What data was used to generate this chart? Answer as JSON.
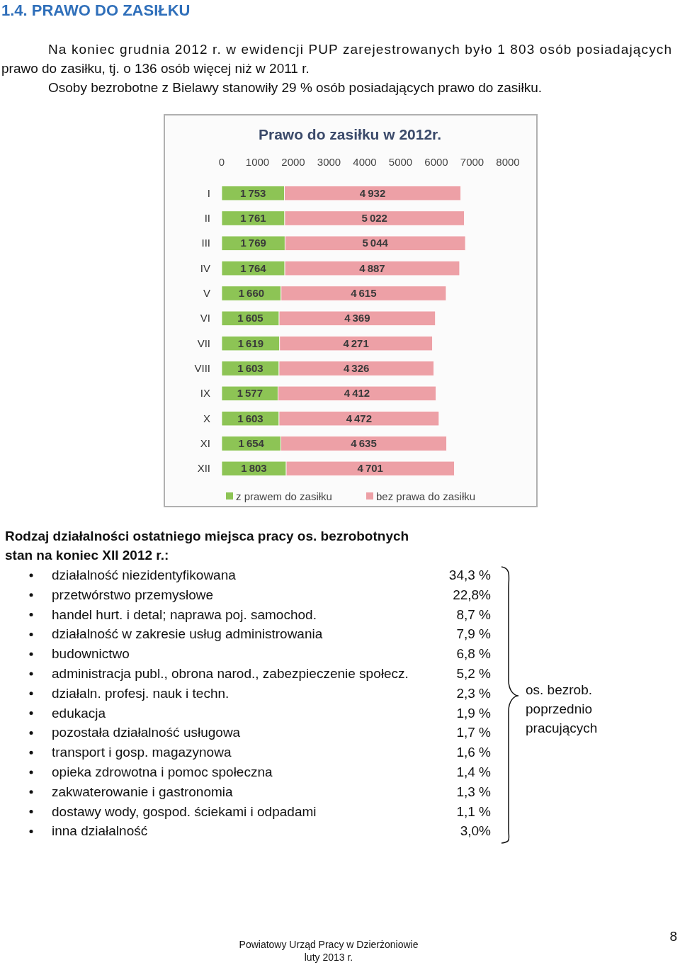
{
  "chart_data": [
    {
      "type": "other",
      "title": "1.4. PRAWO DO ZASIŁKU",
      "annotations": [
        "Na koniec grudnia 2012 r. w ewidencji PUP zarejestrowanych było 1 803 osób posiadających",
        "prawo do zasiłku, tj. o 136 osób więcej niż w 2011 r.",
        "Osoby bezrobotne z Bielawy stanowiły 29 % osób posiadających prawo do zasiłku."
      ]
    },
    {
      "type": "bar",
      "title": "Prawo do zasiłku w 2012r.",
      "orientation": "horizontal",
      "stacked": true,
      "data_labels": true,
      "legend": "bottom",
      "xlim": [
        0,
        8000
      ],
      "xticks": [
        0,
        1000,
        2000,
        3000,
        4000,
        5000,
        6000,
        7000,
        8000
      ],
      "categories": [
        "I",
        "II",
        "III",
        "IV",
        "V",
        "VI",
        "VII",
        "VIII",
        "IX",
        "X",
        "XI",
        "XII"
      ],
      "series": [
        {
          "name": "z prawem do zasiłku",
          "color": "#8dc455",
          "values": [
            1753,
            1761,
            1769,
            1764,
            1660,
            1605,
            1619,
            1603,
            1577,
            1603,
            1654,
            1803
          ]
        },
        {
          "name": "bez prawa do zasiłku",
          "color": "#eda0a6",
          "values": [
            4932,
            5022,
            5044,
            4887,
            4615,
            4369,
            4271,
            4326,
            4412,
            4472,
            4635,
            4701
          ]
        }
      ]
    },
    {
      "type": "other",
      "title": "Rodzaj działalności ostatniego miejsca pracy os. bezrobotnych stan na koniec XII 2012 r.:",
      "categories": [
        "działalność niezidentyfikowana",
        "przetwórstwo przemysłowe",
        "handel hurt. i detal; naprawa poj. samochod.",
        "działalność w zakresie usług administrowania",
        "budownictwo",
        "administracja publ., obrona narod., zabezpieczenie społecz.",
        "działaln. profesj. nauk i techn.",
        "edukacja",
        "pozostała działalność usługowa",
        "transport i gosp. magazynowa",
        "opieka zdrowotna i pomoc społeczna",
        "zakwaterowanie i gastronomia",
        "dostawy wody, gospod. ściekami i odpadami",
        "inna działalność"
      ],
      "value_labels": [
        "34,3 %",
        "22,8%",
        "8,7 %",
        "7,9 %",
        "6,8 %",
        "5,2 %",
        "2,3 %",
        "1,9 %",
        "1,7 %",
        "1,6 %",
        "1,4 %",
        "1,3 %",
        "1,1 %",
        "3,0%"
      ],
      "annotations": [
        "os. bezrob.\npoprzednio\npracujących",
        "Powiatowy Urząd Pracy w Dzierżoniowie\nluty 2013 r.",
        "8"
      ]
    }
  ]
}
